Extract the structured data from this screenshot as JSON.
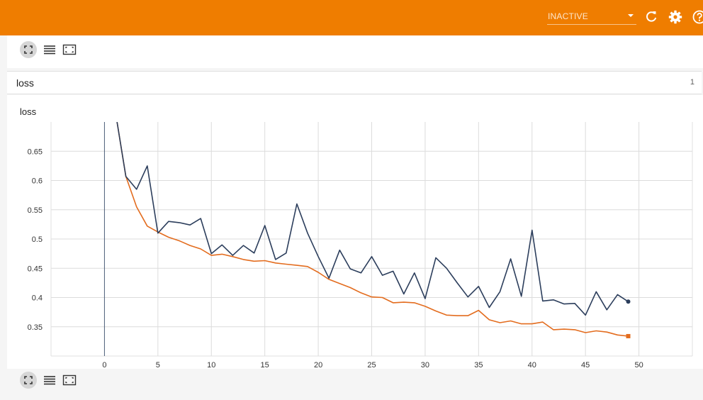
{
  "header": {
    "run_status": "INACTIVE",
    "icons": [
      "refresh-icon",
      "gear-icon",
      "help-icon"
    ]
  },
  "toolbar_top": {
    "icons": [
      "fit-domain-icon",
      "log-scale-icon",
      "expand-icon"
    ]
  },
  "toolbar_bottom": {
    "icons": [
      "fit-domain-icon",
      "log-scale-icon",
      "expand-icon"
    ]
  },
  "group": {
    "title": "loss",
    "count": "1"
  },
  "chart_data": {
    "type": "line",
    "title": "loss",
    "xlabel": "",
    "ylabel": "",
    "xlim": [
      -5,
      55
    ],
    "ylim": [
      0.3,
      0.7
    ],
    "x_ticks": [
      0,
      5,
      10,
      15,
      20,
      25,
      30,
      35,
      40,
      45,
      50
    ],
    "y_ticks": [
      0.35,
      0.4,
      0.45,
      0.5,
      0.55,
      0.6,
      0.65
    ],
    "y_tick_labels": [
      "0.35",
      "0.4",
      "0.45",
      "0.5",
      "0.55",
      "0.6",
      "0.65"
    ],
    "grid": true,
    "series": [
      {
        "color": "#2c3e5c",
        "style": "raw",
        "x": [
          1,
          2,
          3,
          4,
          5,
          6,
          7,
          8,
          9,
          10,
          11,
          12,
          13,
          14,
          15,
          16,
          17,
          18,
          19,
          20,
          21,
          22,
          23,
          24,
          25,
          26,
          27,
          28,
          29,
          30,
          31,
          32,
          33,
          34,
          35,
          36,
          37,
          38,
          39,
          40,
          41,
          42,
          43,
          44,
          45,
          46,
          47,
          48,
          49
        ],
        "values": [
          0.72,
          0.607,
          0.585,
          0.625,
          0.51,
          0.53,
          0.528,
          0.524,
          0.535,
          0.475,
          0.49,
          0.472,
          0.489,
          0.476,
          0.523,
          0.465,
          0.476,
          0.56,
          0.51,
          0.47,
          0.433,
          0.481,
          0.449,
          0.442,
          0.47,
          0.438,
          0.445,
          0.406,
          0.442,
          0.398,
          0.468,
          0.45,
          0.425,
          0.401,
          0.419,
          0.383,
          0.41,
          0.466,
          0.402,
          0.515,
          0.394,
          0.396,
          0.389,
          0.39,
          0.37,
          0.41,
          0.379,
          0.405,
          0.393
        ]
      },
      {
        "color": "#e36c1e",
        "style": "smoothed",
        "x": [
          1,
          2,
          3,
          4,
          5,
          6,
          7,
          8,
          9,
          10,
          11,
          12,
          13,
          14,
          15,
          16,
          17,
          18,
          19,
          20,
          21,
          22,
          23,
          24,
          25,
          26,
          27,
          28,
          29,
          30,
          31,
          32,
          33,
          34,
          35,
          36,
          37,
          38,
          39,
          40,
          41,
          42,
          43,
          44,
          45,
          46,
          47,
          48,
          49
        ],
        "values": [
          0.72,
          0.607,
          0.555,
          0.522,
          0.512,
          0.503,
          0.497,
          0.489,
          0.483,
          0.472,
          0.474,
          0.47,
          0.465,
          0.462,
          0.463,
          0.459,
          0.457,
          0.455,
          0.453,
          0.443,
          0.431,
          0.424,
          0.417,
          0.408,
          0.401,
          0.4,
          0.391,
          0.392,
          0.391,
          0.385,
          0.377,
          0.37,
          0.369,
          0.369,
          0.378,
          0.362,
          0.357,
          0.36,
          0.355,
          0.355,
          0.358,
          0.345,
          0.346,
          0.345,
          0.34,
          0.343,
          0.341,
          0.336,
          0.334
        ]
      }
    ]
  }
}
